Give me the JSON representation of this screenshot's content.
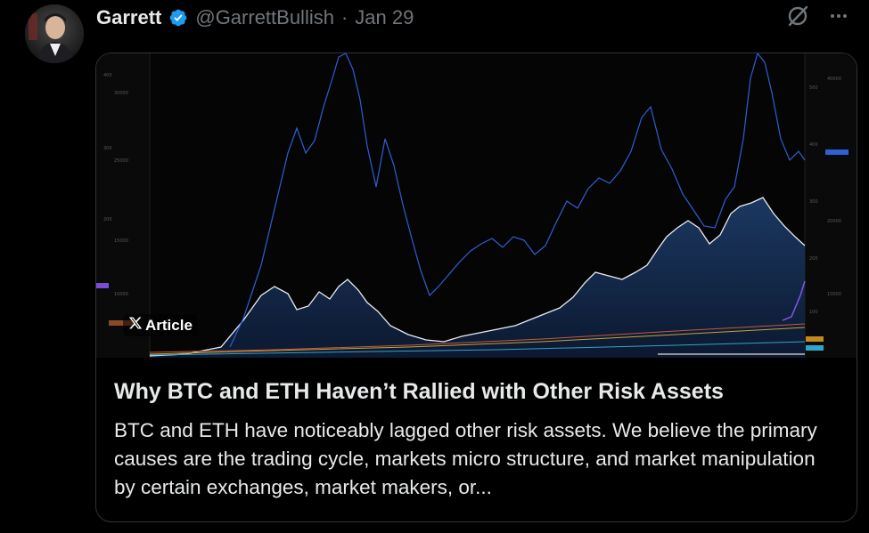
{
  "tweet": {
    "author_name": "Garrett",
    "handle": "@GarrettBullish",
    "separator": "·",
    "date": "Jan 29"
  },
  "icons": {
    "verified": "verified-badge-icon",
    "grok": "grok-icon",
    "more": "more-icon",
    "x_logo": "x-logo-icon"
  },
  "colors": {
    "background": "#000000",
    "text_primary": "#e7e9ea",
    "text_secondary": "#71767b",
    "verified_blue": "#1d9bf0",
    "card_border": "#2f3336",
    "chart_blue": "#2c5fd6",
    "chart_white": "#e8ecf2"
  },
  "card": {
    "badge_label": "Article",
    "title": "Why BTC and ETH Haven’t Rallied with Other Risk Assets",
    "description": "BTC and ETH have noticeably lagged other risk assets. We believe the primary causes are the trading cycle, markets micro structure, and market manipulation by certain exchanges, market makers, or..."
  }
}
